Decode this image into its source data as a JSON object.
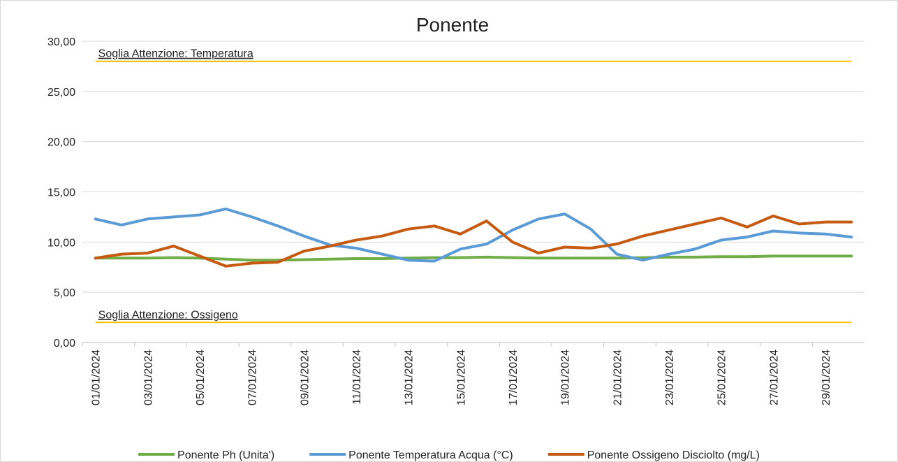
{
  "chart_data": {
    "type": "line",
    "title": "Ponente",
    "categories": [
      "01/01/2024",
      null,
      "03/01/2024",
      null,
      "05/01/2024",
      null,
      "07/01/2024",
      null,
      "09/01/2024",
      null,
      "11/01/2024",
      null,
      "13/01/2024",
      null,
      "15/01/2024",
      null,
      "17/01/2024",
      null,
      "19/01/2024",
      null,
      "21/01/2024",
      null,
      "23/01/2024",
      null,
      "25/01/2024",
      null,
      "27/01/2024",
      null,
      "29/01/2024",
      null
    ],
    "series": [
      {
        "name": "Ponente Ph (Unita')",
        "color": "#70ad47",
        "values": [
          8.4,
          8.4,
          8.4,
          8.45,
          8.4,
          8.3,
          8.2,
          8.2,
          8.25,
          8.3,
          8.35,
          8.35,
          8.4,
          8.45,
          8.45,
          8.5,
          8.45,
          8.4,
          8.4,
          8.4,
          8.4,
          8.45,
          8.5,
          8.5,
          8.55,
          8.55,
          8.6,
          8.6,
          8.6,
          8.6
        ]
      },
      {
        "name": "Ponente Temperatura Acqua (°C)",
        "color": "#5b9bd5",
        "values": [
          12.3,
          11.7,
          12.3,
          12.5,
          12.7,
          13.3,
          12.5,
          11.6,
          10.6,
          9.7,
          9.4,
          8.8,
          8.2,
          8.1,
          9.3,
          9.8,
          11.2,
          12.3,
          12.8,
          11.3,
          8.8,
          8.2,
          8.8,
          9.3,
          10.2,
          10.5,
          11.1,
          10.9,
          10.8,
          10.5
        ]
      },
      {
        "name": "Ponente Ossigeno Disciolto (mg/L)",
        "color": "#c55a11",
        "values": [
          8.4,
          8.8,
          8.9,
          9.6,
          8.6,
          7.6,
          7.9,
          8.0,
          9.1,
          9.6,
          10.2,
          10.6,
          11.3,
          11.6,
          10.8,
          12.1,
          10.0,
          8.9,
          9.5,
          9.4,
          9.8,
          10.6,
          11.2,
          11.8,
          12.4,
          11.5,
          12.6,
          11.8,
          12.0,
          12.0
        ]
      }
    ],
    "annotations": [
      {
        "text": "Soglia Attenzione: Temperatura",
        "value": 28,
        "color": "#ffc000"
      },
      {
        "text": "Soglia Attenzione: Ossigeno",
        "value": 2,
        "color": "#ffc000"
      }
    ],
    "ylim": [
      0,
      30
    ],
    "yticks": [
      {
        "value": 0,
        "label": "0,00"
      },
      {
        "value": 5,
        "label": "5,00"
      },
      {
        "value": 10,
        "label": "10,00"
      },
      {
        "value": 15,
        "label": "15,00"
      },
      {
        "value": 20,
        "label": "20,00"
      },
      {
        "value": 25,
        "label": "25,00"
      },
      {
        "value": 30,
        "label": "30,00"
      }
    ],
    "grid": true,
    "legend": "bottom"
  }
}
